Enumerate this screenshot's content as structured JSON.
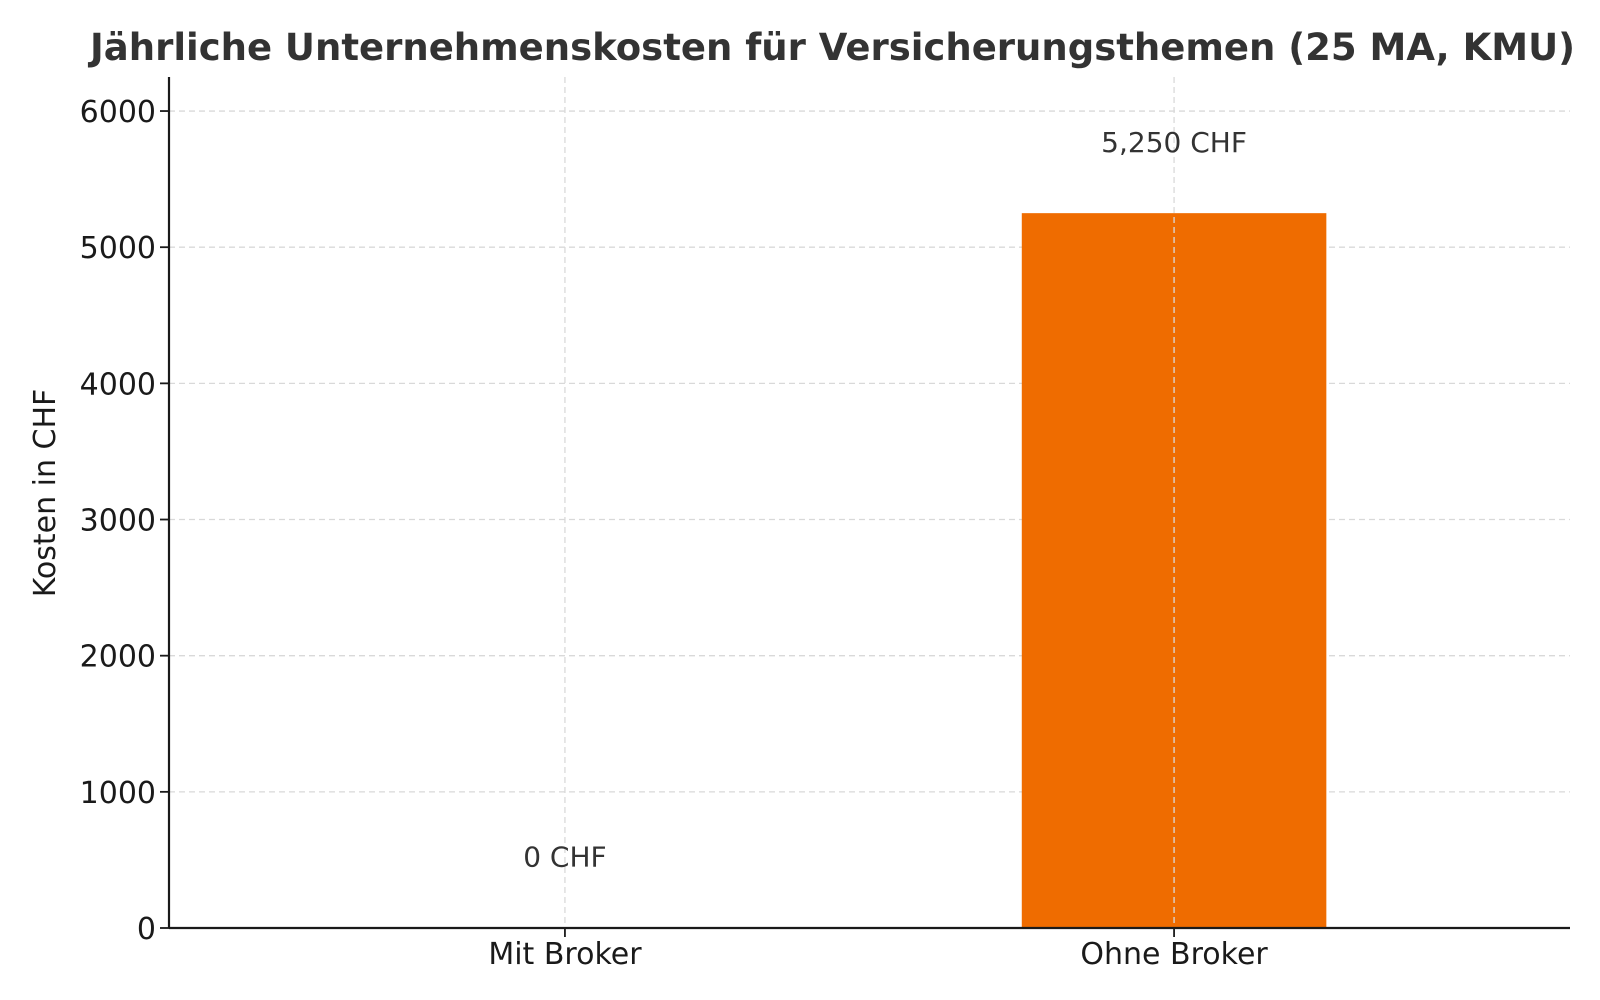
{
  "chart_data": {
    "type": "bar",
    "title": "Jährliche Unternehmenskosten für Versicherungsthemen (25 MA, KMU)",
    "xlabel": "",
    "ylabel": "Kosten in CHF",
    "categories": [
      "Mit Broker",
      "Ohne Broker"
    ],
    "values": [
      0,
      5250
    ],
    "data_labels": [
      "0 CHF",
      "5,250 CHF"
    ],
    "ylim": [
      0,
      6250
    ],
    "yticks": [
      0,
      1000,
      2000,
      3000,
      4000,
      5000,
      6000
    ],
    "ytick_labels": [
      "0",
      "1000",
      "2000",
      "3000",
      "4000",
      "5000",
      "6000"
    ],
    "bar_colors": [
      "#1f77b4",
      "#ef6c00"
    ],
    "grid": true,
    "legend": false
  }
}
